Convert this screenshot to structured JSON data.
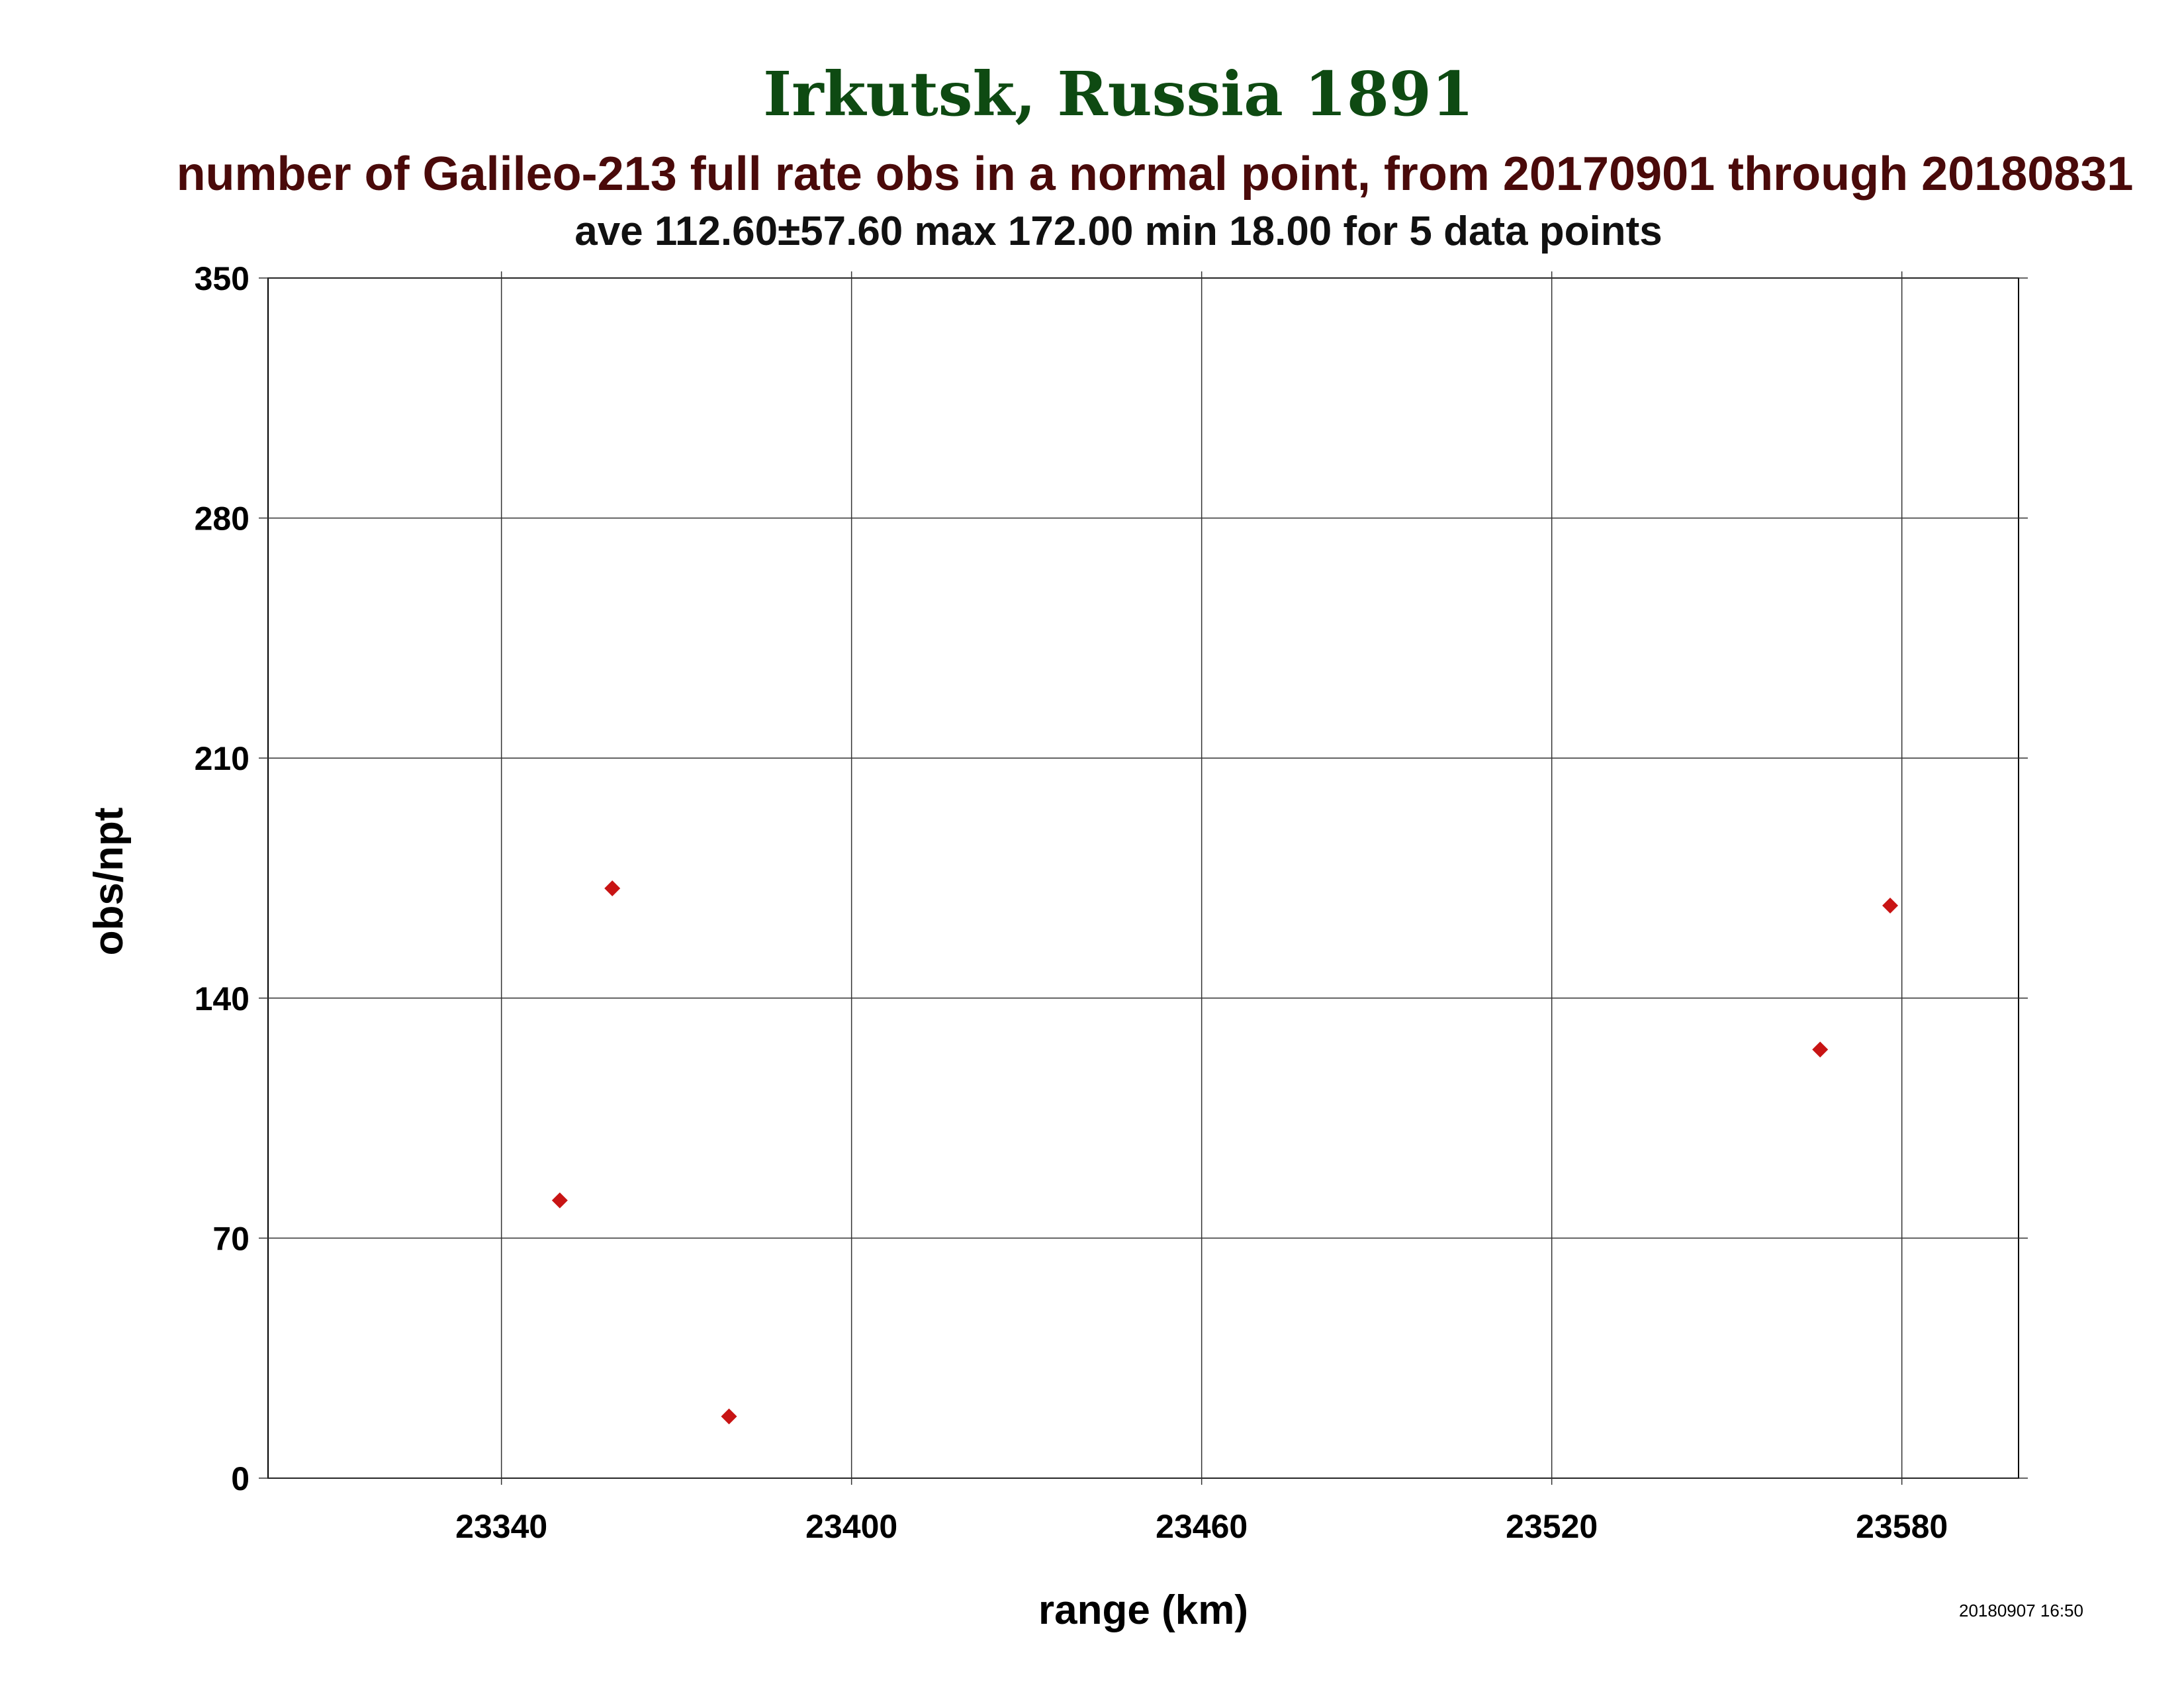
{
  "title": "Irkutsk, Russia 1891",
  "subtitle": "number of Galileo-213 full rate obs in a normal point, from 20170901 through 20180831",
  "stats": "ave 112.60±57.60 max 172.00 min 18.00 for 5 data points",
  "timestamp": "20180907 16:50",
  "chart_data": {
    "type": "scatter",
    "title": "Irkutsk, Russia 1891",
    "xlabel": "range (km)",
    "ylabel": "obs/npt",
    "xlim": [
      23300,
      23600
    ],
    "ylim": [
      0,
      350
    ],
    "xticks": [
      23340,
      23400,
      23460,
      23520,
      23580
    ],
    "yticks": [
      0,
      70,
      140,
      210,
      280,
      350
    ],
    "grid": true,
    "marker": "diamond",
    "marker_color": "#c81414",
    "points": [
      {
        "x": 23350,
        "y": 81
      },
      {
        "x": 23359,
        "y": 172
      },
      {
        "x": 23379,
        "y": 18
      },
      {
        "x": 23566,
        "y": 125
      },
      {
        "x": 23578,
        "y": 167
      }
    ]
  }
}
